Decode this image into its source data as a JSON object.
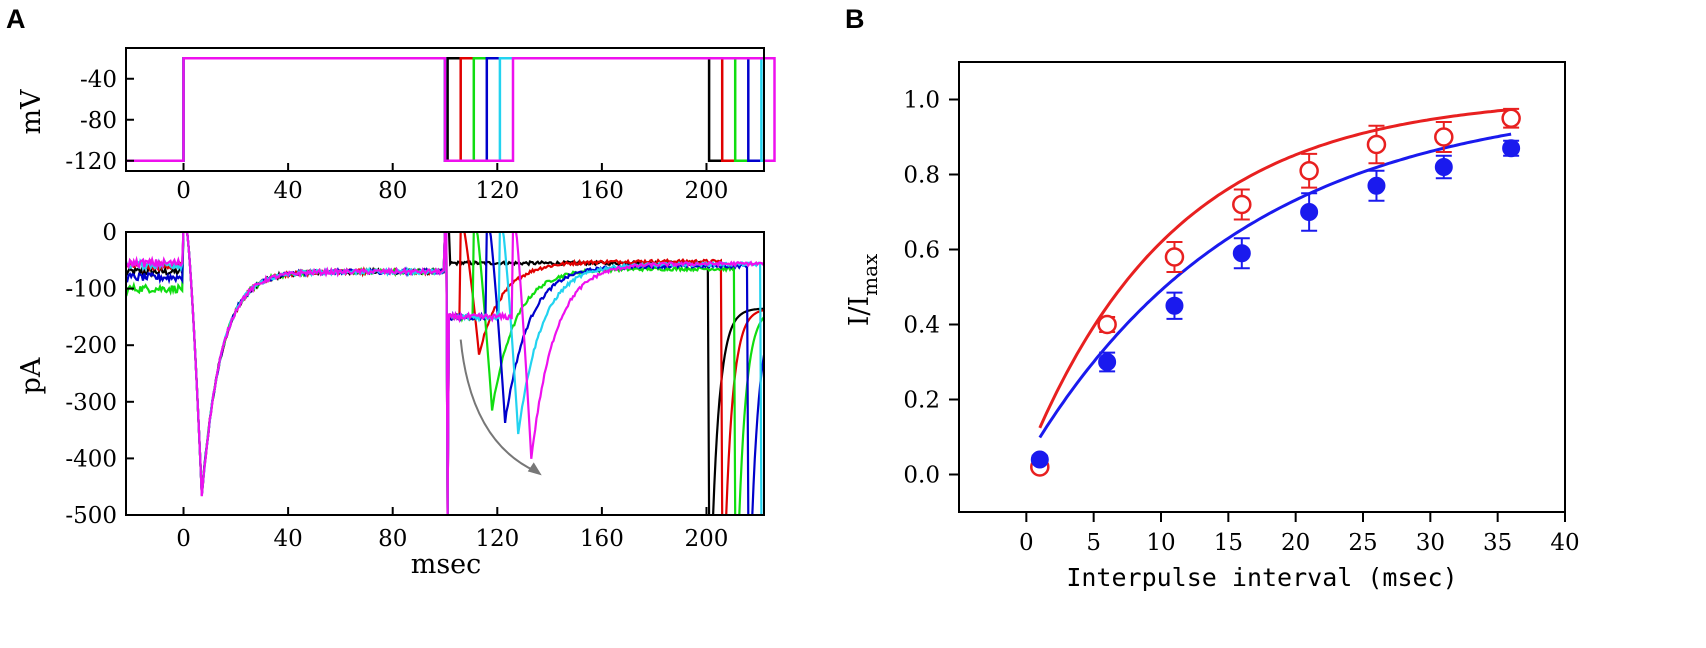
{
  "panel_a_letter": "A",
  "panel_b_letter": "B",
  "chart_data": [
    {
      "type": "line",
      "panel": "A-top",
      "description": "voltage protocol",
      "ylabel": "mV",
      "xlim": [
        -22,
        222
      ],
      "ylim": [
        -130,
        -10
      ],
      "x_ticks": [
        0,
        40,
        80,
        120,
        160,
        200
      ],
      "y_ticks": [
        -40,
        -80,
        -120
      ],
      "holding_mV": -120,
      "step_mV": -20,
      "prepulse_start_ms": 0,
      "series": [
        {
          "name": "black",
          "color": "#000000",
          "test_on": 100,
          "test_off": 101,
          "last_drop": 201
        },
        {
          "name": "red",
          "color": "#e00000",
          "test_on": 100,
          "test_off": 106,
          "last_drop": 206
        },
        {
          "name": "green",
          "color": "#10dd10",
          "test_on": 100,
          "test_off": 111,
          "last_drop": 211
        },
        {
          "name": "blue",
          "color": "#0000cc",
          "test_on": 100,
          "test_off": 116,
          "last_drop": 216
        },
        {
          "name": "cyan",
          "color": "#22d3f0",
          "test_on": 100,
          "test_off": 121,
          "last_drop": 221
        },
        {
          "name": "magenta",
          "color": "#ee10ee",
          "test_on": 100,
          "test_off": 126,
          "last_drop": 226
        }
      ]
    },
    {
      "type": "line",
      "panel": "A-bottom",
      "description": "current traces",
      "xlabel": "msec",
      "ylabel": "pA",
      "xlim": [
        -22,
        222
      ],
      "ylim": [
        -500,
        0
      ],
      "x_ticks": [
        0,
        40,
        80,
        120,
        160,
        200
      ],
      "y_ticks": [
        0,
        -100,
        -200,
        -300,
        -400,
        -500
      ],
      "first_peak": {
        "t_ms": 7,
        "amp_pA": -465
      },
      "series": [
        {
          "name": "black",
          "color": "#000000",
          "baseline": -70,
          "steady": -55,
          "second_peak_t": 101,
          "second_peak_amp": -60
        },
        {
          "name": "red",
          "color": "#e00000",
          "baseline": -60,
          "steady": -52,
          "second_peak_t": 113,
          "second_peak_amp": -215
        },
        {
          "name": "green",
          "color": "#10dd10",
          "baseline": -100,
          "steady": -65,
          "second_peak_t": 118,
          "second_peak_amp": -315
        },
        {
          "name": "blue",
          "color": "#0000cc",
          "baseline": -80,
          "steady": -60,
          "second_peak_t": 123,
          "second_peak_amp": -335
        },
        {
          "name": "cyan",
          "color": "#22d3f0",
          "baseline": -58,
          "steady": -57,
          "second_peak_t": 128,
          "second_peak_amp": -355
        },
        {
          "name": "magenta",
          "color": "#ee10ee",
          "baseline": -55,
          "steady": -56,
          "second_peak_t": 133,
          "second_peak_amp": -400
        }
      ],
      "arrow": {
        "from": [
          106,
          -190
        ],
        "to": [
          137,
          -430
        ],
        "color": "#777777"
      }
    },
    {
      "type": "scatter",
      "panel": "B",
      "xlabel": "Interpulse interval (msec)",
      "ylabel_main": "I/I",
      "ylabel_sub": "max",
      "xlim": [
        -5,
        40
      ],
      "ylim": [
        -0.1,
        1.1
      ],
      "x_ticks": [
        0,
        5,
        10,
        15,
        20,
        25,
        30,
        35,
        40
      ],
      "y_ticks": [
        "0.0",
        "0.2",
        "0.4",
        "0.6",
        "0.8",
        "1.0"
      ],
      "series": [
        {
          "name": "open-red",
          "color": "#e82020",
          "marker": "open-circle",
          "x": [
            1,
            6,
            11,
            16,
            21,
            26,
            31,
            36
          ],
          "y": [
            0.02,
            0.4,
            0.58,
            0.72,
            0.81,
            0.88,
            0.9,
            0.95
          ],
          "err": [
            0.01,
            0.02,
            0.04,
            0.04,
            0.045,
            0.05,
            0.04,
            0.025
          ]
        },
        {
          "name": "filled-blue",
          "color": "#1a1aee",
          "marker": "filled-circle",
          "x": [
            1,
            6,
            11,
            16,
            21,
            26,
            31,
            36
          ],
          "y": [
            0.04,
            0.3,
            0.45,
            0.59,
            0.7,
            0.77,
            0.82,
            0.87
          ],
          "err": [
            0.01,
            0.025,
            0.035,
            0.04,
            0.05,
            0.04,
            0.03,
            0.02
          ]
        }
      ],
      "fits": [
        {
          "series": "open-red",
          "color": "#e82020",
          "A": 0.97,
          "tau": 11.0,
          "x_from": 1,
          "x_to": 36
        },
        {
          "series": "filled-blue",
          "color": "#1a1aee",
          "A": 0.97,
          "tau": 16.0,
          "x_from": 1,
          "x_to": 36
        }
      ]
    }
  ]
}
